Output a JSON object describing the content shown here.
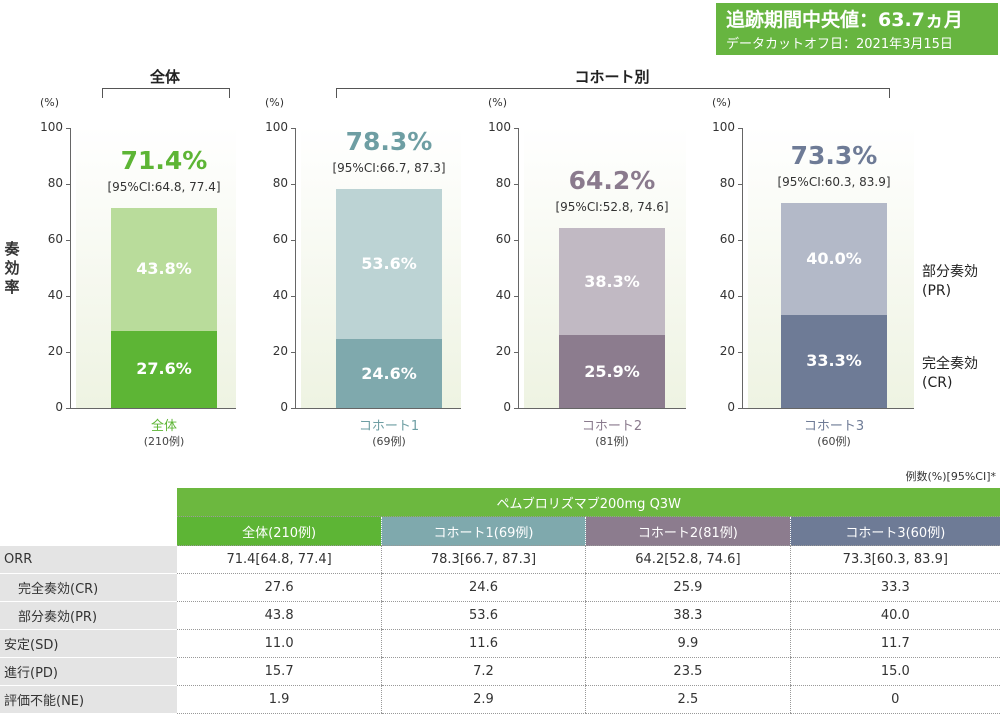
{
  "followup": {
    "line1": "追跡期間中央値：63.7ヵ月",
    "line2": "データカットオフ日：2021年3月15日"
  },
  "groups": {
    "overall": "全体",
    "cohort": "コホート別"
  },
  "y_title": "奏効率",
  "unit_label": "(%)",
  "y_ticks": [
    "100",
    "80",
    "60",
    "40",
    "20",
    "0"
  ],
  "legend": {
    "pr_line1": "部分奏効",
    "pr_line2": "(PR)",
    "cr_line1": "完全奏効",
    "cr_line2": "(CR)"
  },
  "colors": {
    "overall_cr": "#5db535",
    "overall_pr": "#b9dc9b",
    "overall_text": "#5db535",
    "c1_cr": "#7fa9ad",
    "c1_pr": "#bcd3d4",
    "c1_text": "#6e9ea3",
    "c2_cr": "#8c7c8e",
    "c2_pr": "#c1b9c3",
    "c2_text": "#8a7a8d",
    "c3_cr": "#6e7b96",
    "c3_pr": "#b3b9c8",
    "c3_text": "#6e7b96"
  },
  "chart_data": {
    "type": "bar",
    "stacked": true,
    "ylim": [
      0,
      100
    ],
    "ylabel": "奏効率",
    "categories": [
      "全体",
      "コホート1",
      "コホート2",
      "コホート3"
    ],
    "counts": [
      "(210例)",
      "(69例)",
      "(81例)",
      "(60例)"
    ],
    "series": [
      {
        "name": "完全奏効(CR)",
        "values": [
          27.6,
          24.6,
          25.9,
          33.3
        ]
      },
      {
        "name": "部分奏効(PR)",
        "values": [
          43.8,
          53.6,
          38.3,
          40.0
        ]
      }
    ],
    "totals": [
      71.4,
      78.3,
      64.2,
      73.3
    ],
    "cr_labels": [
      "27.6%",
      "24.6%",
      "25.9%",
      "33.3%"
    ],
    "pr_labels": [
      "43.8%",
      "53.6%",
      "38.3%",
      "40.0%"
    ],
    "total_labels": [
      "71.4%",
      "78.3%",
      "64.2%",
      "73.3%"
    ],
    "ci_labels": [
      "[95%CI:64.8, 77.4]",
      "[95%CI:66.7, 87.3]",
      "[95%CI:52.8, 74.6]",
      "[95%CI:60.3, 83.9]"
    ]
  },
  "table": {
    "note": "例数(%)[95%CI]*",
    "drug": "ペムブロリズマブ200mg Q3W",
    "columns": [
      "全体(210例)",
      "コホート1(69例)",
      "コホート2(81例)",
      "コホート3(60例)"
    ],
    "rows": [
      {
        "label": "ORR",
        "values": [
          "71.4[64.8, 77.4]",
          "78.3[66.7, 87.3]",
          "64.2[52.8, 74.6]",
          "73.3[60.3, 83.9]"
        ]
      },
      {
        "label": "完全奏効(CR)",
        "values": [
          "27.6",
          "24.6",
          "25.9",
          "33.3"
        ]
      },
      {
        "label": "部分奏効(PR)",
        "values": [
          "43.8",
          "53.6",
          "38.3",
          "40.0"
        ]
      },
      {
        "label": "安定(SD)",
        "values": [
          "11.0",
          "11.6",
          "9.9",
          "11.7"
        ]
      },
      {
        "label": "進行(PD)",
        "values": [
          "15.7",
          "7.2",
          "23.5",
          "15.0"
        ]
      },
      {
        "label": "評価不能(NE)",
        "values": [
          "1.9",
          "2.9",
          "2.5",
          "0"
        ]
      }
    ]
  }
}
